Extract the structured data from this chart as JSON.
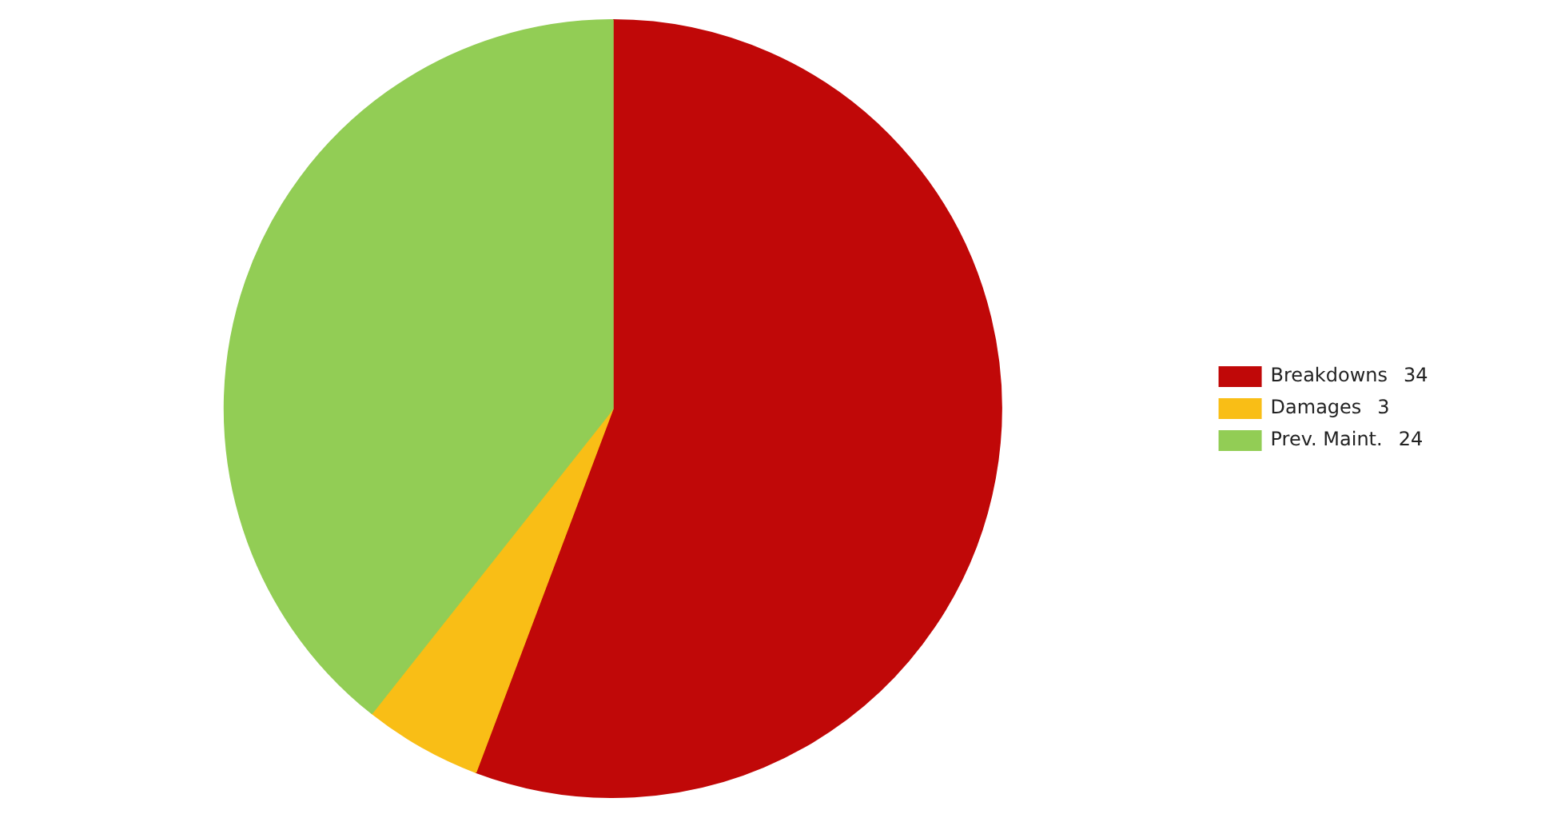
{
  "chart_data": {
    "type": "pie",
    "categories": [
      "Breakdowns",
      "Damages",
      "Prev. Maint."
    ],
    "values": [
      34,
      3,
      24
    ],
    "value_labels": [
      "34",
      "3",
      "24"
    ],
    "colors": [
      "#c00808",
      "#f9be16",
      "#92cd55"
    ],
    "legend": "right"
  }
}
